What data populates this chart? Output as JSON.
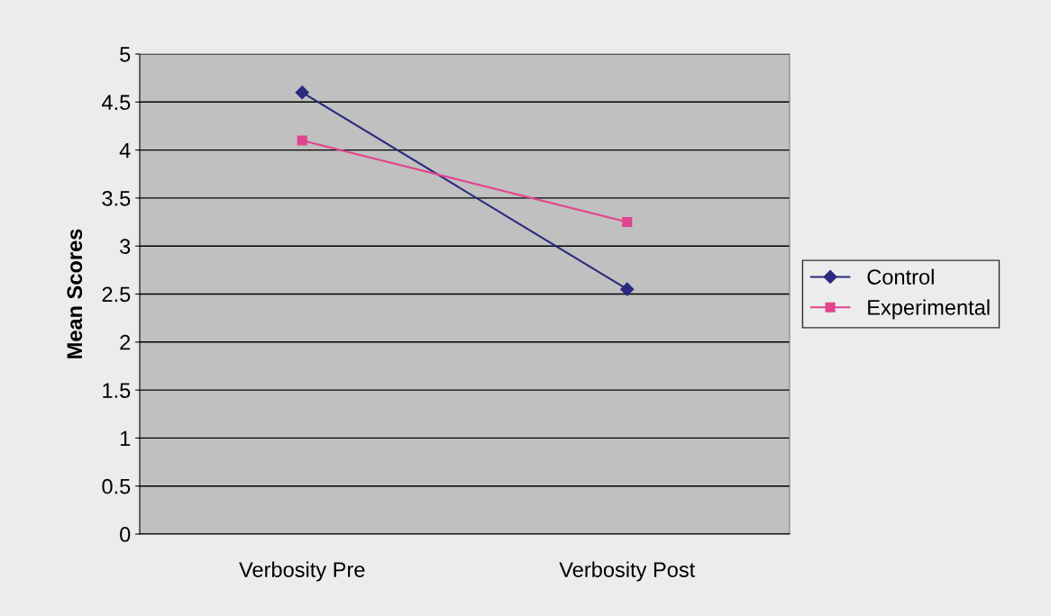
{
  "chart_data": {
    "type": "line",
    "ylabel": "Mean Scores",
    "categories": [
      "Verbosity Pre",
      "Verbosity Post"
    ],
    "series": [
      {
        "name": "Control",
        "color": "#2a2a7e",
        "values": [
          4.6,
          2.55
        ],
        "marker": "diamond"
      },
      {
        "name": "Experimental",
        "color": "#e0448f",
        "values": [
          4.1,
          3.25
        ],
        "marker": "square"
      }
    ],
    "ylim": [
      0,
      5
    ],
    "yticks": [
      0,
      0.5,
      1,
      1.5,
      2,
      2.5,
      3,
      3.5,
      4,
      4.5,
      5
    ],
    "grid": "y",
    "legend": "right"
  }
}
